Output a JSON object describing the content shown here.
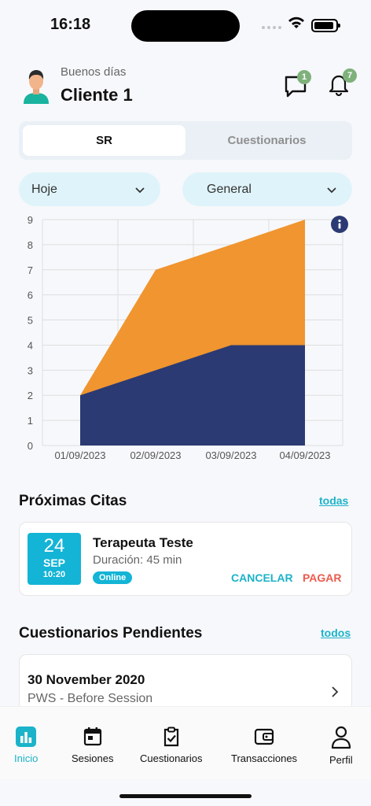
{
  "status": {
    "time": "16:18"
  },
  "header": {
    "greeting": "Buenos días",
    "client_name": "Cliente 1",
    "message_badge": "1",
    "notification_badge": "7"
  },
  "segment": {
    "active": "SR",
    "inactive": "Cuestionarios"
  },
  "filters": {
    "period": "Hoje",
    "category": "General"
  },
  "chart_data": {
    "type": "area",
    "x": [
      "01/09/2023",
      "02/09/2023",
      "03/09/2023",
      "04/09/2023"
    ],
    "series": [
      {
        "values": [
          2,
          3,
          4,
          4
        ],
        "color": "#2b3a73"
      },
      {
        "values": [
          2,
          7,
          8,
          9
        ],
        "color": "#f0952f"
      }
    ],
    "stacked_display": "upper series drawn as total height",
    "ylim": [
      0,
      9
    ],
    "yticks": [
      "0",
      "1",
      "2",
      "3",
      "4",
      "5",
      "6",
      "7",
      "8",
      "9"
    ],
    "grid": true
  },
  "appointments": {
    "title": "Próximas Citas",
    "see_all": "todas",
    "item": {
      "day": "24",
      "month": "SEP",
      "hour": "10:20",
      "therapist": "Terapeuta Teste",
      "duration": "Duración: 45 min",
      "mode": "Online",
      "cancel": "CANCELAR",
      "pay": "PAGAR"
    }
  },
  "questionnaires": {
    "title": "Cuestionarios Pendientes",
    "see_all": "todos",
    "item": {
      "date": "30 November 2020",
      "name": "PWS - Before Session"
    }
  },
  "tabs": [
    {
      "label": "Inicio",
      "icon": "chart-icon"
    },
    {
      "label": "Sesiones",
      "icon": "calendar-icon"
    },
    {
      "label": "Cuestionarios",
      "icon": "clipboard-check-icon"
    },
    {
      "label": "Transacciones",
      "icon": "wallet-icon"
    },
    {
      "label": "Perfil",
      "icon": "person-icon"
    }
  ],
  "colors": {
    "accent": "#1bb3c9",
    "pay": "#ec5b4d",
    "badge": "#7fb17b",
    "area_bottom": "#2b3a73",
    "area_top": "#f0952f"
  }
}
